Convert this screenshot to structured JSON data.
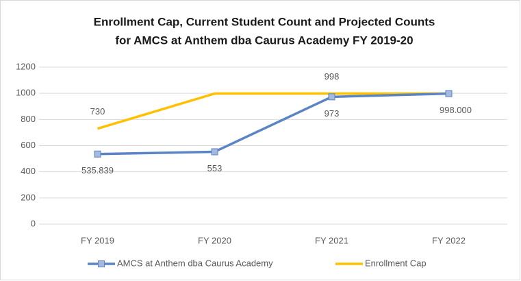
{
  "chart_data": {
    "type": "line",
    "title": [
      "Enrollment Cap, Current Student Count and Projected Counts",
      "for AMCS at Anthem dba Caurus Academy FY 2019-20"
    ],
    "categories": [
      "FY 2019",
      "FY 2020",
      "FY 2021",
      "FY 2022"
    ],
    "series": [
      {
        "name": "AMCS at Anthem dba Caurus Academy",
        "color": "#5b84c4",
        "values": [
          535.839,
          553,
          973,
          998
        ],
        "value_labels": [
          "535.839",
          "553",
          "973",
          "998.000"
        ]
      },
      {
        "name": "Enrollment Cap",
        "color": "#ffc000",
        "values": [
          730,
          998,
          998,
          998
        ],
        "value_labels": [
          "730",
          null,
          "998",
          null
        ]
      }
    ],
    "ylim": [
      0,
      1200
    ],
    "yticks": [
      0,
      200,
      400,
      600,
      800,
      1000,
      1200
    ],
    "grid": true
  }
}
